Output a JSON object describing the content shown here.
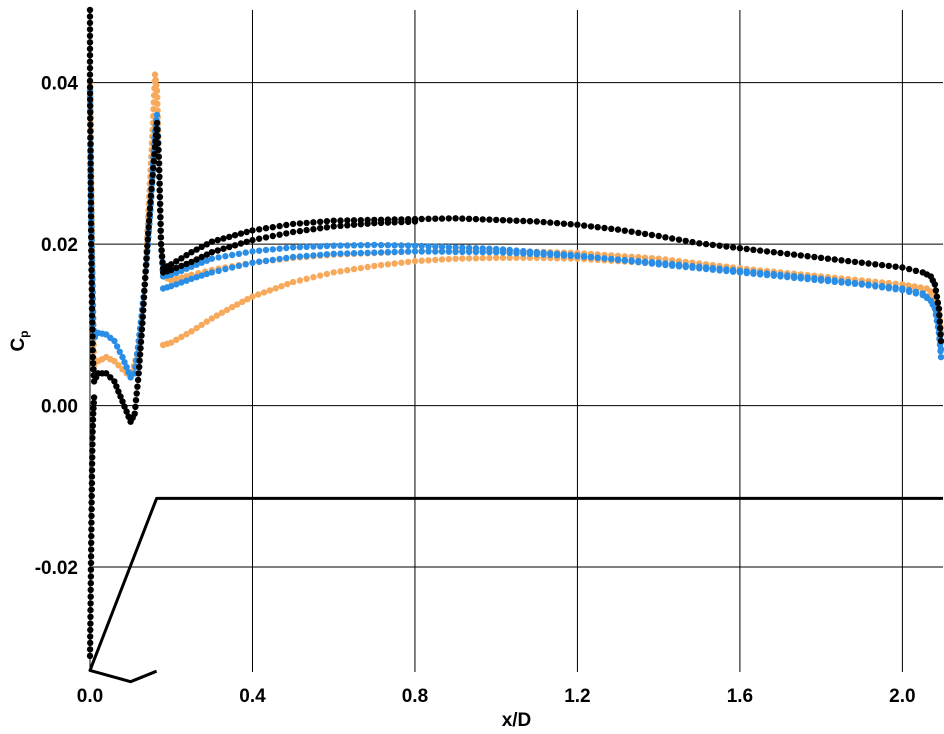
{
  "chart_data": {
    "type": "scatter",
    "xlabel": "x/D",
    "ylabel_main": "C",
    "ylabel_sub": "p",
    "xlim": [
      0.0,
      2.1
    ],
    "ylim": [
      -0.033,
      0.049
    ],
    "xticks": [
      0.0,
      0.4,
      0.8,
      1.2,
      1.6,
      2.0
    ],
    "xtick_labels": [
      "0.0",
      "0.4",
      "0.8",
      "1.2",
      "1.6",
      "2.0"
    ],
    "yticks": [
      -0.02,
      0.0,
      0.02,
      0.04
    ],
    "ytick_labels": [
      "-0.02",
      "0.00",
      "0.02",
      "0.04"
    ],
    "grid": true,
    "legend": "none",
    "series": [
      {
        "color": "#f7a95c",
        "branches": [
          [
            [
              0.0,
              0.04
            ],
            [
              0.005,
              0.02
            ],
            [
              0.01,
              0.005
            ],
            [
              0.02,
              0.0055
            ],
            [
              0.04,
              0.006
            ],
            [
              0.06,
              0.0055
            ],
            [
              0.08,
              0.0045
            ],
            [
              0.1,
              0.0035
            ],
            [
              0.12,
              0.007
            ],
            [
              0.135,
              0.015
            ],
            [
              0.145,
              0.025
            ],
            [
              0.155,
              0.035
            ],
            [
              0.16,
              0.041
            ],
            [
              0.165,
              0.039
            ],
            [
              0.17,
              0.03
            ],
            [
              0.175,
              0.02
            ],
            [
              0.18,
              0.016
            ],
            [
              0.2,
              0.0155
            ],
            [
              0.25,
              0.0162
            ],
            [
              0.3,
              0.0168
            ],
            [
              0.4,
              0.0177
            ],
            [
              0.5,
              0.0183
            ],
            [
              0.6,
              0.0187
            ],
            [
              0.8,
              0.0191
            ],
            [
              1.0,
              0.0192
            ],
            [
              1.2,
              0.0189
            ],
            [
              1.4,
              0.0182
            ],
            [
              1.6,
              0.017
            ],
            [
              1.8,
              0.016
            ],
            [
              1.9,
              0.0155
            ],
            [
              2.0,
              0.015
            ],
            [
              2.06,
              0.0145
            ],
            [
              2.08,
              0.0138
            ],
            [
              2.09,
              0.012
            ],
            [
              2.095,
              0.009
            ]
          ],
          [
            [
              0.18,
              0.0075
            ],
            [
              0.2,
              0.0078
            ],
            [
              0.25,
              0.0092
            ],
            [
              0.3,
              0.0108
            ],
            [
              0.35,
              0.0122
            ],
            [
              0.4,
              0.0135
            ],
            [
              0.5,
              0.0153
            ],
            [
              0.6,
              0.0165
            ],
            [
              0.7,
              0.0173
            ],
            [
              0.8,
              0.0179
            ],
            [
              0.9,
              0.0182
            ],
            [
              1.0,
              0.0183
            ],
            [
              1.1,
              0.0183
            ],
            [
              1.2,
              0.0182
            ],
            [
              1.3,
              0.0179
            ],
            [
              1.4,
              0.0176
            ],
            [
              1.5,
              0.0172
            ],
            [
              1.6,
              0.0166
            ],
            [
              1.7,
              0.0161
            ],
            [
              1.8,
              0.0156
            ],
            [
              1.9,
              0.0151
            ],
            [
              2.0,
              0.0145
            ],
            [
              2.05,
              0.014
            ],
            [
              2.08,
              0.0132
            ],
            [
              2.09,
              0.0115
            ],
            [
              2.095,
              0.009
            ]
          ]
        ]
      },
      {
        "color": "#2b8ee6",
        "branches": [
          [
            [
              0.0,
              0.039
            ],
            [
              0.002,
              0.028
            ],
            [
              0.005,
              0.018
            ],
            [
              0.008,
              0.01
            ],
            [
              0.012,
              0.0085
            ],
            [
              0.02,
              0.009
            ],
            [
              0.04,
              0.0088
            ],
            [
              0.06,
              0.008
            ],
            [
              0.08,
              0.006
            ],
            [
              0.1,
              0.0035
            ],
            [
              0.11,
              0.004
            ],
            [
              0.12,
              0.008
            ],
            [
              0.135,
              0.015
            ],
            [
              0.15,
              0.025
            ],
            [
              0.16,
              0.034
            ],
            [
              0.165,
              0.036
            ],
            [
              0.17,
              0.03
            ],
            [
              0.175,
              0.02
            ],
            [
              0.18,
              0.016
            ],
            [
              0.2,
              0.0162
            ],
            [
              0.25,
              0.0172
            ],
            [
              0.3,
              0.0182
            ],
            [
              0.4,
              0.0191
            ],
            [
              0.5,
              0.0196
            ],
            [
              0.6,
              0.0198
            ],
            [
              0.7,
              0.0199
            ],
            [
              0.8,
              0.0198
            ],
            [
              1.0,
              0.0194
            ],
            [
              1.2,
              0.0186
            ],
            [
              1.4,
              0.0175
            ],
            [
              1.6,
              0.0165
            ],
            [
              1.8,
              0.0155
            ],
            [
              1.9,
              0.015
            ],
            [
              2.0,
              0.0143
            ],
            [
              2.05,
              0.0137
            ],
            [
              2.07,
              0.013
            ],
            [
              2.08,
              0.012
            ],
            [
              2.09,
              0.009
            ],
            [
              2.095,
              0.006
            ]
          ],
          [
            [
              0.18,
              0.0145
            ],
            [
              0.2,
              0.0148
            ],
            [
              0.25,
              0.0157
            ],
            [
              0.3,
              0.0165
            ],
            [
              0.4,
              0.0177
            ],
            [
              0.5,
              0.0184
            ],
            [
              0.6,
              0.0188
            ],
            [
              0.8,
              0.0191
            ],
            [
              1.0,
              0.019
            ],
            [
              1.2,
              0.0185
            ],
            [
              1.4,
              0.0177
            ],
            [
              1.6,
              0.0167
            ],
            [
              1.8,
              0.0157
            ],
            [
              1.9,
              0.0151
            ],
            [
              2.0,
              0.0145
            ],
            [
              2.05,
              0.0139
            ],
            [
              2.08,
              0.0125
            ],
            [
              2.09,
              0.01
            ],
            [
              2.095,
              0.007
            ]
          ]
        ]
      },
      {
        "color": "#000000",
        "branches": [
          [
            [
              0.0,
              0.049
            ],
            [
              0.0,
              0.041
            ],
            [
              0.001,
              0.034
            ],
            [
              0.002,
              0.026
            ],
            [
              0.003,
              0.02
            ],
            [
              0.005,
              0.012
            ],
            [
              0.007,
              0.006
            ],
            [
              0.01,
              0.003
            ],
            [
              0.015,
              0.0035
            ],
            [
              0.02,
              0.004
            ],
            [
              0.04,
              0.004
            ],
            [
              0.06,
              0.003
            ],
            [
              0.08,
              0.0005
            ],
            [
              0.1,
              -0.002
            ],
            [
              0.11,
              -0.001
            ],
            [
              0.12,
              0.004
            ],
            [
              0.13,
              0.011
            ],
            [
              0.14,
              0.019
            ],
            [
              0.15,
              0.026
            ],
            [
              0.16,
              0.032
            ],
            [
              0.165,
              0.035
            ],
            [
              0.17,
              0.03
            ],
            [
              0.175,
              0.02
            ],
            [
              0.18,
              0.017
            ],
            [
              0.2,
              0.0175
            ],
            [
              0.25,
              0.019
            ],
            [
              0.3,
              0.0203
            ],
            [
              0.4,
              0.0217
            ],
            [
              0.5,
              0.0225
            ],
            [
              0.6,
              0.0229
            ],
            [
              0.7,
              0.023
            ],
            [
              0.8,
              0.0231
            ],
            [
              0.9,
              0.0232
            ],
            [
              1.0,
              0.023
            ],
            [
              1.1,
              0.0228
            ],
            [
              1.2,
              0.0224
            ],
            [
              1.3,
              0.0218
            ],
            [
              1.4,
              0.021
            ],
            [
              1.5,
              0.0201
            ],
            [
              1.6,
              0.0195
            ],
            [
              1.7,
              0.0189
            ],
            [
              1.8,
              0.0183
            ],
            [
              1.9,
              0.0177
            ],
            [
              2.0,
              0.0171
            ],
            [
              2.05,
              0.0165
            ],
            [
              2.07,
              0.016
            ],
            [
              2.08,
              0.015
            ],
            [
              2.09,
              0.012
            ],
            [
              2.095,
              0.008
            ]
          ],
          [
            [
              0.18,
              0.0165
            ],
            [
              0.2,
              0.0168
            ],
            [
              0.25,
              0.0178
            ],
            [
              0.3,
              0.019
            ],
            [
              0.4,
              0.0205
            ],
            [
              0.5,
              0.0215
            ],
            [
              0.6,
              0.0222
            ],
            [
              0.7,
              0.0226
            ],
            [
              0.8,
              0.0228
            ]
          ],
          [
            [
              0.0,
              -0.031
            ],
            [
              0.001,
              -0.027
            ],
            [
              0.002,
              -0.022
            ],
            [
              0.003,
              -0.017
            ],
            [
              0.004,
              -0.012
            ],
            [
              0.005,
              -0.008
            ],
            [
              0.006,
              -0.004
            ],
            [
              0.008,
              -0.001
            ],
            [
              0.01,
              0.001
            ]
          ]
        ]
      }
    ],
    "geometry_outline": {
      "color": "#000000",
      "polyline": [
        [
          0.164,
          -0.0329
        ],
        [
          0.1,
          -0.0342
        ],
        [
          0.0,
          -0.0328
        ],
        [
          0.164,
          -0.0115
        ],
        [
          2.1,
          -0.0115
        ]
      ]
    }
  }
}
